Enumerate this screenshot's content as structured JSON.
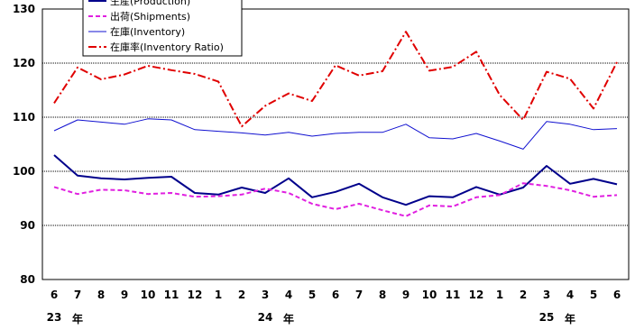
{
  "chart_data": {
    "type": "line",
    "title": "",
    "xlabel": "",
    "ylabel": "",
    "ylim": [
      80,
      130
    ],
    "yticks": [
      80,
      90,
      100,
      110,
      120,
      130
    ],
    "grid": "horizontal-dotted",
    "legend_position": "top-left",
    "categories": [
      "6",
      "7",
      "8",
      "9",
      "10",
      "11",
      "12",
      "1",
      "2",
      "3",
      "4",
      "5",
      "6",
      "7",
      "8",
      "9",
      "10",
      "11",
      "12",
      "1",
      "2",
      "3",
      "4",
      "5",
      "6"
    ],
    "year_labels": [
      {
        "year": "23",
        "unit": "年",
        "index": 0
      },
      {
        "year": "24",
        "unit": "年",
        "index": 9
      },
      {
        "year": "25",
        "unit": "年",
        "index": 21
      }
    ],
    "series": [
      {
        "name": "生産(Production)",
        "color": "#00008b",
        "dash": "solid",
        "width": 2,
        "values": [
          103.0,
          99.2,
          98.7,
          98.5,
          98.8,
          99.0,
          96.0,
          95.7,
          97.0,
          96.0,
          98.7,
          95.2,
          96.2,
          97.7,
          95.2,
          93.8,
          95.4,
          95.2,
          97.1,
          95.7,
          97.0,
          101.0,
          97.7,
          98.6,
          97.6
        ]
      },
      {
        "name": "出荷(Shipments)",
        "color": "#e020e0",
        "dash": "dashed",
        "width": 2,
        "values": [
          97.1,
          95.8,
          96.6,
          96.5,
          95.8,
          96.0,
          95.3,
          95.4,
          95.7,
          96.8,
          96.0,
          94.0,
          93.0,
          94.0,
          92.8,
          91.7,
          93.7,
          93.5,
          95.2,
          95.6,
          97.8,
          97.3,
          96.5,
          95.3,
          95.6
        ]
      },
      {
        "name": "在庫(Inventory)",
        "color": "#1010d0",
        "dash": "solid",
        "width": 1,
        "values": [
          107.5,
          109.5,
          109.1,
          108.7,
          109.7,
          109.5,
          107.7,
          107.4,
          107.1,
          106.7,
          107.2,
          106.5,
          107.0,
          107.2,
          107.2,
          108.7,
          106.2,
          106.0,
          107.0,
          105.6,
          104.1,
          109.2,
          108.7,
          107.7,
          107.9
        ]
      },
      {
        "name": "在庫率(Inventory Ratio)",
        "color": "#e00000",
        "dash": "dashdot",
        "width": 2,
        "values": [
          112.6,
          119.2,
          117.0,
          117.9,
          119.5,
          118.7,
          118.0,
          116.6,
          108.3,
          112.1,
          114.4,
          113.0,
          119.6,
          117.7,
          118.5,
          125.8,
          118.6,
          119.3,
          122.1,
          114.1,
          109.5,
          118.4,
          117.1,
          111.6,
          120.2
        ]
      }
    ]
  }
}
